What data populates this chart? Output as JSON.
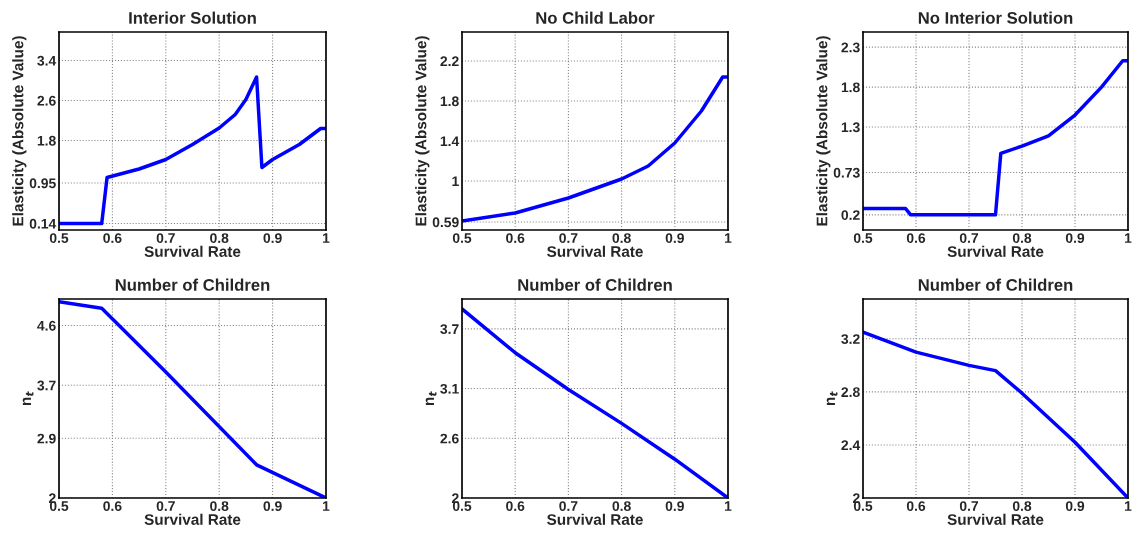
{
  "chart_data": [
    {
      "type": "line",
      "title": "Interior Solution",
      "xlabel": "Survival Rate",
      "ylabel": "Elasticity (Absolute Value)",
      "xlim": [
        0.5,
        1
      ],
      "xticks": [
        0.5,
        0.6,
        0.7,
        0.8,
        0.9,
        1
      ],
      "ylim": [
        0.01,
        3.97
      ],
      "yticks": [
        0.14,
        0.95,
        1.8,
        2.6,
        3.4
      ],
      "grid": true,
      "series": [
        {
          "color": "#0000ff",
          "x": [
            0.5,
            0.58,
            0.59,
            0.65,
            0.7,
            0.75,
            0.8,
            0.83,
            0.85,
            0.87,
            0.88,
            0.9,
            0.95,
            0.99,
            1
          ],
          "values": [
            0.14,
            0.14,
            1.06,
            1.23,
            1.42,
            1.72,
            2.05,
            2.32,
            2.62,
            3.07,
            1.26,
            1.42,
            1.72,
            2.04,
            2.04
          ]
        }
      ]
    },
    {
      "type": "line",
      "title": "No Child Labor",
      "xlabel": "Survival Rate",
      "ylabel": "Elasticity (Absolute Value)",
      "xlim": [
        0.5,
        1
      ],
      "xticks": [
        0.5,
        0.6,
        0.7,
        0.8,
        0.9,
        1
      ],
      "ylim": [
        0.51,
        2.49
      ],
      "yticks": [
        0.59,
        1,
        1.4,
        1.8,
        2.2
      ],
      "grid": true,
      "series": [
        {
          "color": "#0000ff",
          "x": [
            0.5,
            0.6,
            0.7,
            0.8,
            0.85,
            0.9,
            0.95,
            0.99,
            1
          ],
          "values": [
            0.6,
            0.68,
            0.83,
            1.02,
            1.15,
            1.38,
            1.7,
            2.04,
            2.04
          ]
        }
      ]
    },
    {
      "type": "line",
      "title": "No Interior Solution",
      "xlabel": "Survival Rate",
      "ylabel": "Elasticity (Absolute Value)",
      "xlim": [
        0.5,
        1
      ],
      "xticks": [
        0.5,
        0.6,
        0.7,
        0.8,
        0.9,
        1
      ],
      "ylim": [
        0.01,
        2.49
      ],
      "yticks": [
        0.2,
        0.73,
        1.3,
        1.8,
        2.3
      ],
      "grid": true,
      "series": [
        {
          "color": "#0000ff",
          "x": [
            0.5,
            0.58,
            0.59,
            0.75,
            0.76,
            0.8,
            0.85,
            0.9,
            0.95,
            0.99,
            1
          ],
          "values": [
            0.28,
            0.28,
            0.2,
            0.2,
            0.97,
            1.06,
            1.19,
            1.45,
            1.8,
            2.13,
            2.13
          ]
        }
      ]
    },
    {
      "type": "line",
      "title": "Number of Children",
      "xlabel": "Survival Rate",
      "ylabel": "n$_{t}$",
      "xlim": [
        0.5,
        1
      ],
      "xticks": [
        0.5,
        0.6,
        0.7,
        0.8,
        0.9,
        1
      ],
      "ylim": [
        2,
        5.0
      ],
      "yticks": [
        2,
        2.9,
        3.7,
        4.6
      ],
      "grid": true,
      "series": [
        {
          "color": "#0000ff",
          "x": [
            0.5,
            0.58,
            0.7,
            0.87,
            1
          ],
          "values": [
            4.96,
            4.86,
            3.9,
            2.5,
            2.0
          ]
        }
      ]
    },
    {
      "type": "line",
      "title": "Number of Children",
      "xlabel": "Survival Rate",
      "ylabel": "n$_{t}$",
      "xlim": [
        0.5,
        1
      ],
      "xticks": [
        0.5,
        0.6,
        0.7,
        0.8,
        0.9,
        1
      ],
      "ylim": [
        2,
        4.0
      ],
      "yticks": [
        2,
        2.6,
        3.1,
        3.7
      ],
      "grid": true,
      "series": [
        {
          "color": "#0000ff",
          "x": [
            0.5,
            0.6,
            0.7,
            0.8,
            0.9,
            1
          ],
          "values": [
            3.9,
            3.46,
            3.09,
            2.75,
            2.39,
            2.0
          ]
        }
      ]
    },
    {
      "type": "line",
      "title": "Number of Children",
      "xlabel": "Survival Rate",
      "ylabel": "n$_{t}$",
      "xlim": [
        0.5,
        1
      ],
      "xticks": [
        0.5,
        0.6,
        0.7,
        0.8,
        0.9,
        1
      ],
      "ylim": [
        2,
        3.5
      ],
      "yticks": [
        2,
        2.4,
        2.8,
        3.2
      ],
      "grid": true,
      "series": [
        {
          "color": "#0000ff",
          "x": [
            0.5,
            0.6,
            0.7,
            0.75,
            0.8,
            0.9,
            1
          ],
          "values": [
            3.25,
            3.1,
            3.0,
            2.96,
            2.79,
            2.42,
            2.0
          ]
        }
      ]
    }
  ]
}
